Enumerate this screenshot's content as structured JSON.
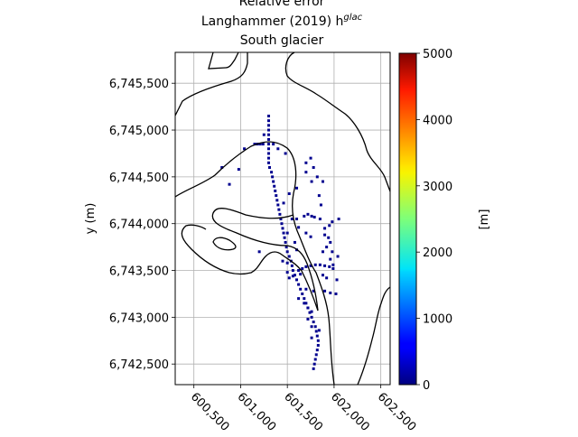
{
  "title_lines": [
    "Relative error",
    "Langhammer (2019) h",
    "South glacier"
  ],
  "title_superscript": "glac",
  "chart_data": {
    "type": "heatmap",
    "title": "Relative error Langhammer (2019) h^glac South glacier",
    "xlabel": "",
    "ylabel": "y (m)",
    "colorbar_label": "[m]",
    "colormap": "jet",
    "xlim": [
      600300,
      602600
    ],
    "ylim": [
      6742280,
      6745830
    ],
    "grid": true,
    "x_ticks": [
      600500,
      601000,
      601500,
      602000,
      602500
    ],
    "x_tick_labels": [
      "600,500",
      "601,000",
      "601,500",
      "602,000",
      "602,500"
    ],
    "y_ticks": [
      6742500,
      6743000,
      6743500,
      6744000,
      6744500,
      6745000,
      6745500
    ],
    "y_tick_labels": [
      "6,742,500",
      "6,743,000",
      "6,743,500",
      "6,744,000",
      "6,744,500",
      "6,745,000",
      "6,745,500"
    ],
    "colorbar_range": [
      0,
      5000
    ],
    "colorbar_ticks": [
      0,
      1000,
      2000,
      3000,
      4000,
      5000
    ],
    "colorbar_tick_labels": [
      "0",
      "1000",
      "2000",
      "3000",
      "4000",
      "5000"
    ],
    "cell_value_m": 0,
    "cells": [
      [
        601300,
        6745150
      ],
      [
        601300,
        6745100
      ],
      [
        601300,
        6745050
      ],
      [
        601300,
        6745000
      ],
      [
        601300,
        6744950
      ],
      [
        601300,
        6744900
      ],
      [
        601300,
        6744850
      ],
      [
        601300,
        6744800
      ],
      [
        601300,
        6744750
      ],
      [
        601300,
        6744700
      ],
      [
        601300,
        6744650
      ],
      [
        601310,
        6744600
      ],
      [
        601330,
        6744550
      ],
      [
        601340,
        6744500
      ],
      [
        601350,
        6744450
      ],
      [
        601360,
        6744400
      ],
      [
        601370,
        6744350
      ],
      [
        601380,
        6744300
      ],
      [
        601390,
        6744250
      ],
      [
        601400,
        6744200
      ],
      [
        601410,
        6744150
      ],
      [
        601420,
        6744100
      ],
      [
        601430,
        6744050
      ],
      [
        601440,
        6744000
      ],
      [
        601450,
        6743950
      ],
      [
        601460,
        6743900
      ],
      [
        601470,
        6743850
      ],
      [
        601480,
        6743800
      ],
      [
        601490,
        6743750
      ],
      [
        601500,
        6743700
      ],
      [
        601520,
        6743650
      ],
      [
        601540,
        6743600
      ],
      [
        601550,
        6743550
      ],
      [
        601560,
        6743500
      ],
      [
        601580,
        6743450
      ],
      [
        601600,
        6743400
      ],
      [
        601620,
        6743350
      ],
      [
        601640,
        6743300
      ],
      [
        601660,
        6743250
      ],
      [
        601680,
        6743200
      ],
      [
        601700,
        6743150
      ],
      [
        601720,
        6743100
      ],
      [
        601740,
        6743050
      ],
      [
        601760,
        6743000
      ],
      [
        601780,
        6742950
      ],
      [
        601800,
        6742900
      ],
      [
        601810,
        6742850
      ],
      [
        601820,
        6742800
      ],
      [
        601830,
        6742750
      ],
      [
        601830,
        6742700
      ],
      [
        601820,
        6742650
      ],
      [
        601810,
        6742600
      ],
      [
        601800,
        6742550
      ],
      [
        601790,
        6742500
      ],
      [
        601780,
        6742450
      ],
      [
        601150,
        6744850
      ],
      [
        601180,
        6744850
      ],
      [
        601210,
        6744850
      ],
      [
        601240,
        6744850
      ],
      [
        601350,
        6744850
      ],
      [
        601400,
        6744800
      ],
      [
        601480,
        6744750
      ],
      [
        601250,
        6744950
      ],
      [
        601700,
        6744650
      ],
      [
        601750,
        6744700
      ],
      [
        601780,
        6744600
      ],
      [
        601700,
        6744550
      ],
      [
        601820,
        6744500
      ],
      [
        601880,
        6744450
      ],
      [
        601840,
        6744300
      ],
      [
        601860,
        6744200
      ],
      [
        601550,
        6744050
      ],
      [
        601600,
        6744050
      ],
      [
        601680,
        6744080
      ],
      [
        601720,
        6744100
      ],
      [
        601760,
        6744080
      ],
      [
        601790,
        6744070
      ],
      [
        601850,
        6744050
      ],
      [
        601900,
        6743950
      ],
      [
        601950,
        6743980
      ],
      [
        601980,
        6744020
      ],
      [
        601700,
        6743900
      ],
      [
        601750,
        6743860
      ],
      [
        601900,
        6743880
      ],
      [
        601940,
        6743850
      ],
      [
        601960,
        6743800
      ],
      [
        601920,
        6743750
      ],
      [
        601980,
        6743700
      ],
      [
        601880,
        6743700
      ],
      [
        601960,
        6743620
      ],
      [
        601990,
        6743560
      ],
      [
        601620,
        6743500
      ],
      [
        601660,
        6743520
      ],
      [
        601700,
        6743540
      ],
      [
        601750,
        6743550
      ],
      [
        601800,
        6743560
      ],
      [
        601850,
        6743560
      ],
      [
        601900,
        6743550
      ],
      [
        601950,
        6743540
      ],
      [
        601990,
        6743520
      ],
      [
        601500,
        6743480
      ],
      [
        601520,
        6743420
      ],
      [
        601560,
        6743440
      ],
      [
        601640,
        6743460
      ],
      [
        601700,
        6743300
      ],
      [
        601780,
        6743280
      ],
      [
        601900,
        6743280
      ],
      [
        601960,
        6743260
      ],
      [
        602020,
        6743250
      ],
      [
        601620,
        6743200
      ],
      [
        601680,
        6743150
      ],
      [
        601720,
        6743100
      ],
      [
        601760,
        6743060
      ],
      [
        601720,
        6742980
      ],
      [
        601760,
        6742900
      ],
      [
        601840,
        6742860
      ],
      [
        601760,
        6742780
      ],
      [
        601580,
        6743800
      ],
      [
        601600,
        6743720
      ],
      [
        601620,
        6743960
      ],
      [
        601500,
        6743900
      ],
      [
        601460,
        6744220
      ],
      [
        601520,
        6744320
      ],
      [
        601600,
        6744380
      ],
      [
        601760,
        6744450
      ],
      [
        600800,
        6744600
      ],
      [
        600980,
        6744580
      ],
      [
        600880,
        6744420
      ],
      [
        601040,
        6744800
      ],
      [
        601200,
        6743700
      ],
      [
        601880,
        6743450
      ],
      [
        601920,
        6743420
      ],
      [
        602030,
        6743400
      ],
      [
        601450,
        6743600
      ],
      [
        601500,
        6743580
      ],
      [
        602040,
        6743650
      ],
      [
        602050,
        6744050
      ]
    ]
  }
}
